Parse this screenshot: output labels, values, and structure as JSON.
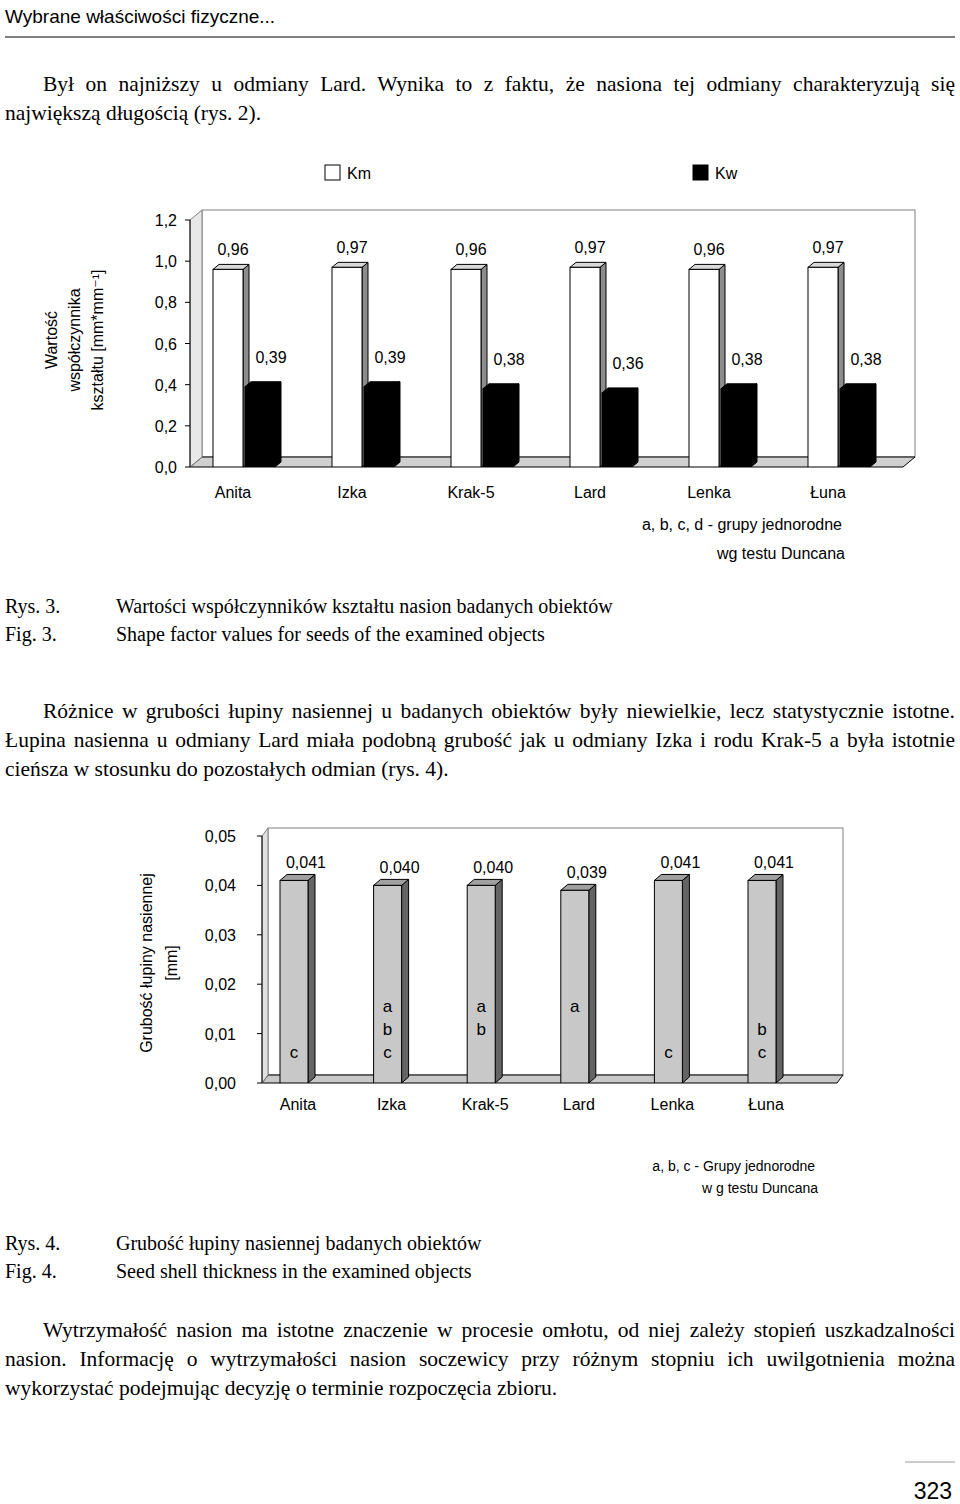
{
  "header": {
    "running_title": "Wybrane właściwości fizyczne...",
    "page_number": "323"
  },
  "paragraphs": [
    "Był on najniższy u odmiany Lard. Wynika to z faktu, że nasiona tej odmiany charakteryzują się największą długością (rys. 2).",
    "Różnice w grubości łupiny nasiennej u badanych obiektów były niewielkie, lecz statystycznie istotne. Łupina nasienna u odmiany Lard miała podobną grubość jak u odmiany Izka i rodu Krak-5 a była istotnie cieńsza w stosunku do pozostałych odmian (rys. 4).",
    "Wytrzymałość nasion ma istotne znaczenie w procesie omłotu, od niej zależy stopień uszkadzalności nasion. Informację o wytrzymałości nasion soczewicy przy różnym stopniu ich uwilgotnienia można wykorzystać podejmując decyzję o terminie rozpoczęcia zbioru."
  ],
  "captions": [
    {
      "rys": "Rys. 3.",
      "fig": "Fig. 3.",
      "text_pl": "Wartości współczynników kształtu nasion badanych obiektów",
      "text_en": "Shape factor values for seeds of the examined objects"
    },
    {
      "rys": "Rys. 4.",
      "fig": "Fig. 4.",
      "text_pl": "Grubość łupiny nasiennej badanych obiektów",
      "text_en": "Seed shell thickness in the examined objects"
    }
  ],
  "chart_data": [
    {
      "type": "bar",
      "categories": [
        "Anita",
        "Izka",
        "Krak-5",
        "Lard",
        "Lenka",
        "Łuna"
      ],
      "series": [
        {
          "name": "Km",
          "color": "#ffffff",
          "values": [
            0.96,
            0.97,
            0.96,
            0.97,
            0.96,
            0.97
          ],
          "value_labels": [
            "0,96",
            "0,97",
            "0,96",
            "0,97",
            "0,96",
            "0,97"
          ]
        },
        {
          "name": "Kw",
          "color": "#000000",
          "values": [
            0.39,
            0.39,
            0.38,
            0.36,
            0.38,
            0.38
          ],
          "value_labels": [
            "0,39",
            "0,39",
            "0,38",
            "0,36",
            "0,38",
            "0,38"
          ]
        }
      ],
      "ylabel": [
        "Wartość",
        "współczynnika",
        "kształtu [mm*mm⁻¹]"
      ],
      "ylim": [
        0,
        1.2
      ],
      "yticks": [
        {
          "value": 0,
          "label": "0,0"
        },
        {
          "value": 0.2,
          "label": "0,2"
        },
        {
          "value": 0.4,
          "label": "0,4"
        },
        {
          "value": 0.6,
          "label": "0,6"
        },
        {
          "value": 0.8,
          "label": "0,8"
        },
        {
          "value": 1.0,
          "label": "1,0"
        },
        {
          "value": 1.2,
          "label": "1,2"
        }
      ],
      "grid": false,
      "legend": "top",
      "data_labels": true,
      "annotations": [
        "a, b, c, d - grupy jednorodne",
        "wg testu Duncana"
      ]
    },
    {
      "type": "bar",
      "categories": [
        "Anita",
        "Izka",
        "Krak-5",
        "Lard",
        "Lenka",
        "Łuna"
      ],
      "series": [
        {
          "color": "#c8c8c8",
          "values": [
            0.041,
            0.04,
            0.04,
            0.039,
            0.041,
            0.041
          ],
          "value_labels": [
            "0,041",
            "0,040",
            "0,040",
            "0,039",
            "0,041",
            "0,041"
          ],
          "groups": [
            [
              "c"
            ],
            [
              "a",
              "b",
              "c"
            ],
            [
              "a",
              "b"
            ],
            [
              "a"
            ],
            [
              "c"
            ],
            [
              "b",
              "c"
            ]
          ]
        }
      ],
      "ylabel": [
        "Grubość łupiny nasiennej",
        "[mm]"
      ],
      "ylim": [
        0,
        0.05
      ],
      "yticks": [
        {
          "value": 0,
          "label": "0,00"
        },
        {
          "value": 0.01,
          "label": "0,01"
        },
        {
          "value": 0.02,
          "label": "0,02"
        },
        {
          "value": 0.03,
          "label": "0,03"
        },
        {
          "value": 0.04,
          "label": "0,04"
        },
        {
          "value": 0.05,
          "label": "0,05"
        }
      ],
      "grid": false,
      "data_labels": true,
      "annotations": [
        "a, b, c - Grupy jednorodne",
        "w g testu Duncana"
      ]
    }
  ]
}
